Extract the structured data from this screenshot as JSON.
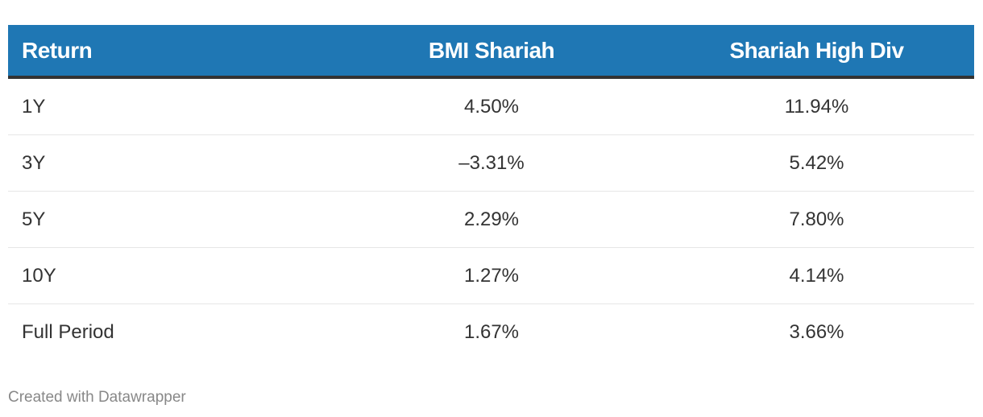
{
  "chart_data": {
    "type": "table",
    "columns": [
      "Return",
      "BMI Shariah",
      "Shariah High Div"
    ],
    "rows": [
      {
        "label": "1Y",
        "values": [
          "4.50%",
          "11.94%"
        ]
      },
      {
        "label": "3Y",
        "values": [
          "–3.31%",
          "5.42%"
        ]
      },
      {
        "label": "5Y",
        "values": [
          "2.29%",
          "7.80%"
        ]
      },
      {
        "label": "10Y",
        "values": [
          "1.27%",
          "4.14%"
        ]
      },
      {
        "label": "Full Period",
        "values": [
          "1.67%",
          "3.66%"
        ]
      }
    ],
    "header_color": "#1f77b4"
  },
  "footer": {
    "credit": "Created with Datawrapper"
  }
}
